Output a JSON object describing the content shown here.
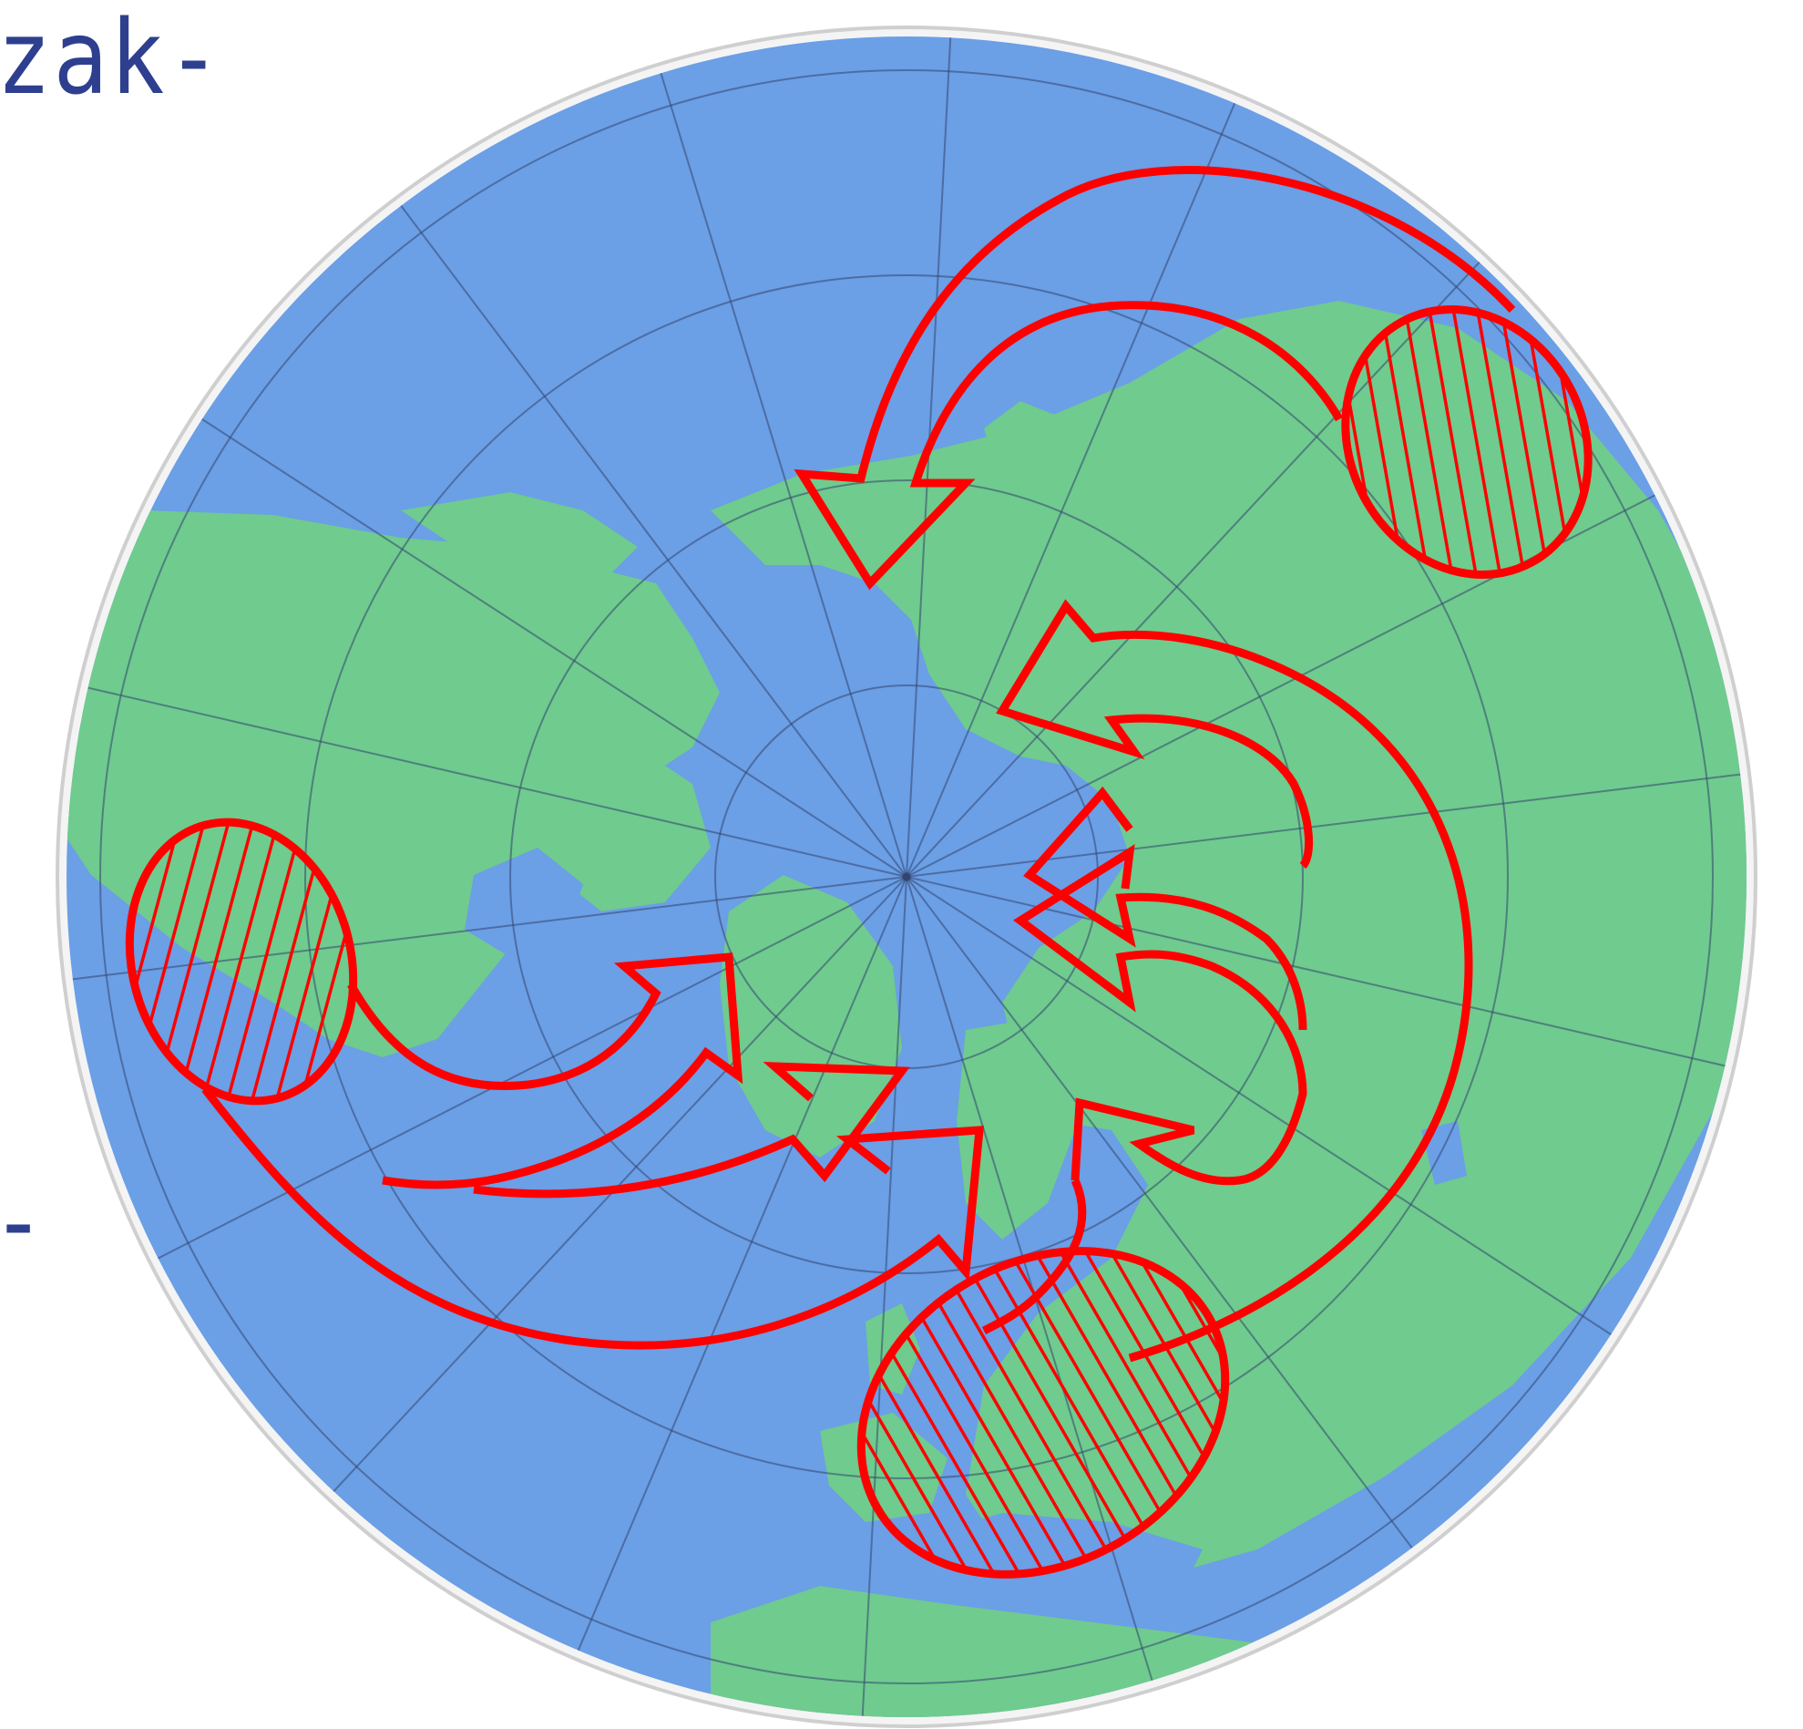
{
  "text_fragments": {
    "top_left": "zak-",
    "left_middle": "-"
  },
  "map": {
    "projection": "polar-azimuthal",
    "center": "North Pole",
    "colors": {
      "ocean": "#6b9fe6",
      "land": "#6fcb8e",
      "graticule": "#33446e",
      "rim": "#e9e9e9",
      "arrows": "#ff0000",
      "arrow_fill": "none"
    },
    "hatched_regions": [
      {
        "name": "eastern-asia-source",
        "hatch": "vertical-diagonal"
      },
      {
        "name": "north-america-source",
        "hatch": "diagonal"
      },
      {
        "name": "mediterranean-europe-source",
        "hatch": "vertical"
      }
    ],
    "arrow_count": 8
  }
}
